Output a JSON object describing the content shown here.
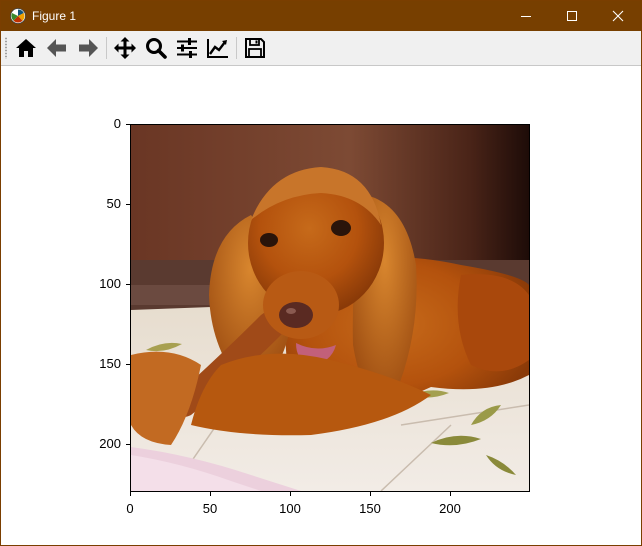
{
  "window": {
    "title": "Figure 1"
  },
  "toolbar": {
    "buttons": [
      {
        "name": "home",
        "icon": "home-icon"
      },
      {
        "name": "back",
        "icon": "arrow-left-icon"
      },
      {
        "name": "forward",
        "icon": "arrow-right-icon"
      },
      {
        "name": "pan",
        "icon": "move-icon"
      },
      {
        "name": "zoom",
        "icon": "magnifier-icon"
      },
      {
        "name": "configure-subplots",
        "icon": "sliders-icon"
      },
      {
        "name": "edit-axes",
        "icon": "line-chart-icon"
      },
      {
        "name": "save",
        "icon": "floppy-disk-icon"
      }
    ]
  },
  "axes": {
    "y_ticks": [
      "0",
      "50",
      "100",
      "150",
      "200"
    ],
    "x_ticks": [
      "0",
      "50",
      "100",
      "150",
      "200"
    ],
    "image_subject": "cocker-spaniel-photo"
  },
  "colors": {
    "titlebar": "#773f00",
    "toolbar": "#f0f0f0"
  }
}
